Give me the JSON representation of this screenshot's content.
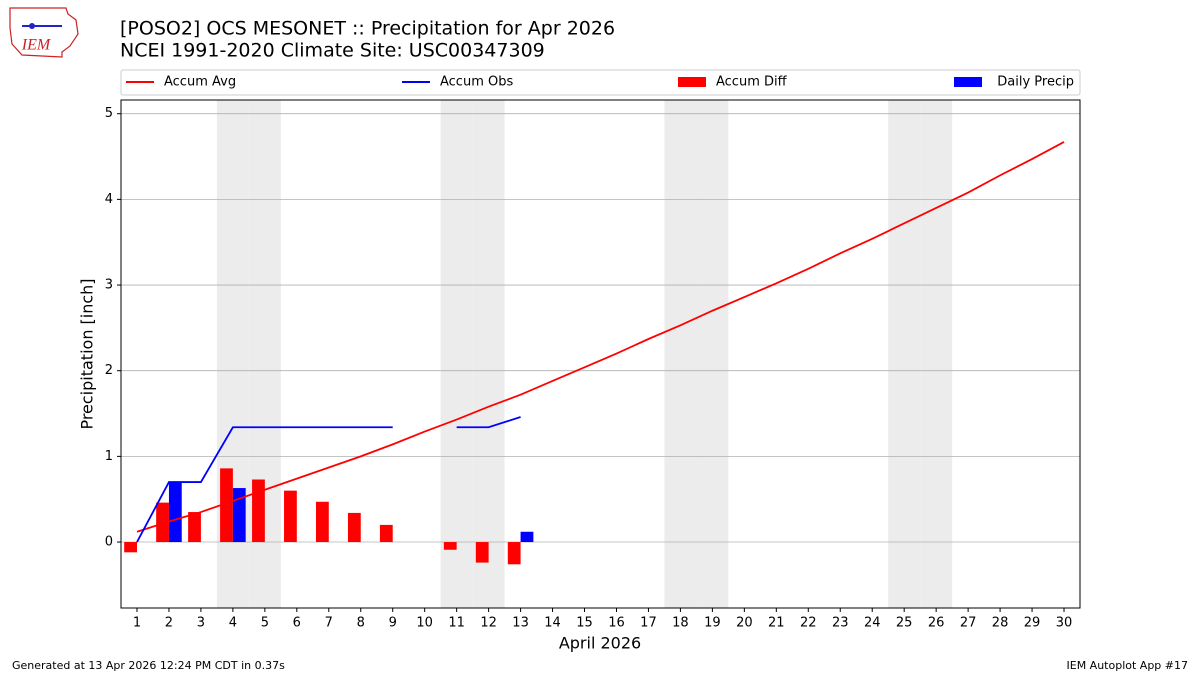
{
  "logo": "IEM",
  "footer_left": "Generated at 13 Apr 2026 12:24 PM CDT in 0.37s",
  "footer_right": "IEM Autoplot App #17",
  "chart_data": {
    "type": "bar-line",
    "title": "[POSO2] OCS MESONET :: Precipitation for Apr 2026",
    "subtitle": "NCEI 1991-2020 Climate Site: USC00347309",
    "xlabel": "April 2026",
    "ylabel": "Precipitation [inch]",
    "x": [
      1,
      2,
      3,
      4,
      5,
      6,
      7,
      8,
      9,
      10,
      11,
      12,
      13,
      14,
      15,
      16,
      17,
      18,
      19,
      20,
      21,
      22,
      23,
      24,
      25,
      26,
      27,
      28,
      29,
      30
    ],
    "xlim": [
      0.5,
      30.5
    ],
    "xticks": [
      1,
      2,
      3,
      4,
      5,
      6,
      7,
      8,
      9,
      10,
      11,
      12,
      13,
      14,
      15,
      16,
      17,
      18,
      19,
      20,
      21,
      22,
      23,
      24,
      25,
      26,
      27,
      28,
      29,
      30
    ],
    "ylim": [
      -0.77,
      5.16
    ],
    "yticks": [
      0,
      1,
      2,
      3,
      4,
      5
    ],
    "grid": true,
    "weekends": [
      4,
      5,
      11,
      12,
      18,
      19,
      25,
      26
    ],
    "series": [
      {
        "name": "Accum Avg",
        "kind": "line",
        "color": "#ff0000",
        "values": [
          0.12,
          0.24,
          0.35,
          0.48,
          0.61,
          0.74,
          0.87,
          1.0,
          1.14,
          1.29,
          1.43,
          1.58,
          1.72,
          1.88,
          2.04,
          2.2,
          2.37,
          2.53,
          2.7,
          2.86,
          3.02,
          3.19,
          3.37,
          3.54,
          3.72,
          3.9,
          4.08,
          4.28,
          4.47,
          4.67
        ]
      },
      {
        "name": "Accum Obs",
        "kind": "line",
        "color": "#0000ff",
        "values": [
          0,
          0.7,
          0.7,
          1.34,
          1.34,
          1.34,
          1.34,
          1.34,
          1.34,
          null,
          1.34,
          1.34,
          1.46,
          null,
          null,
          null,
          null,
          null,
          null,
          null,
          null,
          null,
          null,
          null,
          null,
          null,
          null,
          null,
          null,
          null
        ]
      },
      {
        "name": "Accum Diff",
        "kind": "bar",
        "side": "left",
        "color": "#ff0000",
        "values": [
          -0.12,
          0.46,
          0.35,
          0.86,
          0.73,
          0.6,
          0.47,
          0.34,
          0.2,
          null,
          -0.09,
          -0.24,
          -0.26,
          null,
          null,
          null,
          null,
          null,
          null,
          null,
          null,
          null,
          null,
          null,
          null,
          null,
          null,
          null,
          null,
          null
        ]
      },
      {
        "name": "Daily Precip",
        "kind": "bar",
        "side": "right",
        "color": "#0000ff",
        "values": [
          0,
          0.7,
          0,
          0.63,
          0,
          0,
          0,
          0,
          0,
          null,
          0,
          0,
          0.12,
          null,
          null,
          null,
          null,
          null,
          null,
          null,
          null,
          null,
          null,
          null,
          null,
          null,
          null,
          null,
          null,
          null
        ]
      }
    ]
  }
}
